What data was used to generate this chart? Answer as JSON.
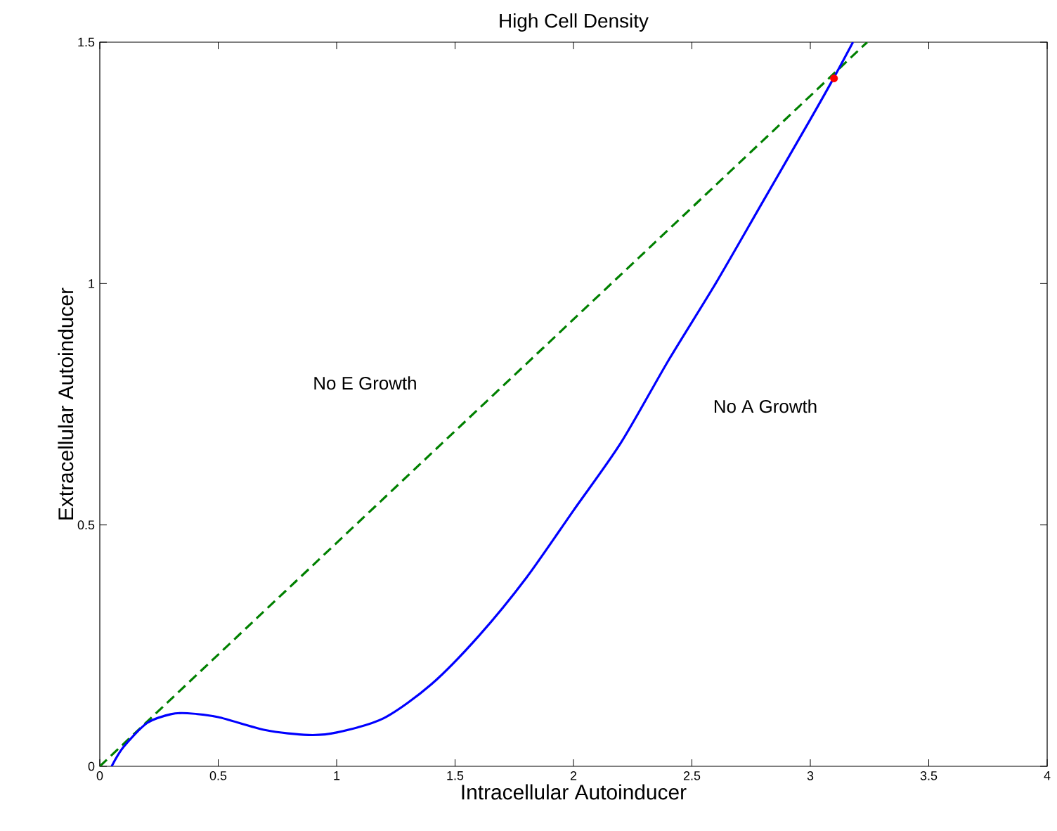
{
  "chart_data": {
    "type": "line",
    "title": "High Cell Density",
    "xlabel": "Intracellular Autoinducer",
    "ylabel": "Extracellular Autoinducer",
    "xlim": [
      0,
      4
    ],
    "ylim": [
      0,
      1.5
    ],
    "xticks": [
      0,
      0.5,
      1,
      1.5,
      2,
      2.5,
      3,
      3.5,
      4
    ],
    "yticks": [
      0,
      0.5,
      1,
      1.5
    ],
    "series": [
      {
        "color": "#008000",
        "line_style": "dashed",
        "x": [
          0,
          3.24
        ],
        "values": [
          0,
          1.5
        ]
      },
      {
        "color": "#0000ff",
        "line_style": "solid",
        "x": [
          0.05,
          0.1,
          0.2,
          0.3,
          0.37,
          0.5,
          0.7,
          0.88,
          1.0,
          1.2,
          1.4,
          1.6,
          1.8,
          2.0,
          2.2,
          2.4,
          2.6,
          2.8,
          3.0,
          3.1,
          3.18
        ],
        "values": [
          0,
          0.04,
          0.09,
          0.108,
          0.11,
          0.102,
          0.075,
          0.065,
          0.07,
          0.1,
          0.17,
          0.27,
          0.39,
          0.53,
          0.67,
          0.84,
          1.0,
          1.17,
          1.34,
          1.427,
          1.5
        ]
      },
      {
        "type": "scatter",
        "color": "#ff0000",
        "marker": "circle",
        "x": [
          3.1
        ],
        "values": [
          1.425
        ]
      }
    ],
    "annotations": [
      "No E Growth",
      "No A Growth"
    ],
    "grid": false
  }
}
